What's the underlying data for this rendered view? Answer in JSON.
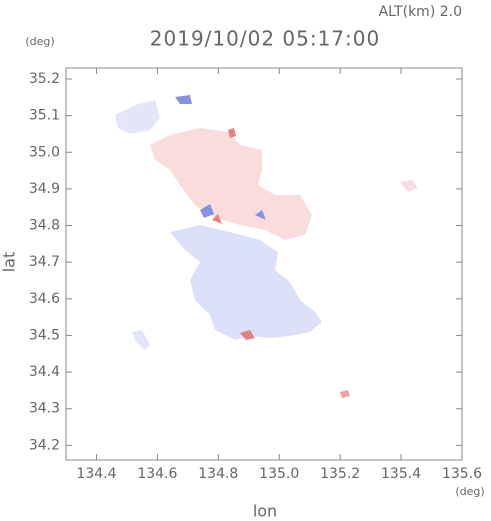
{
  "chart_data": {
    "type": "map",
    "title": "2019/10/02 05:17:00",
    "altitude_label": "ALT(km) 2.0",
    "y_unit": "(deg)",
    "x_unit": "(deg)",
    "x_label": "lon",
    "y_label": "lat",
    "xlim": [
      134.3,
      135.6
    ],
    "ylim": [
      34.16,
      35.23
    ],
    "xticks": [
      134.4,
      134.6,
      134.8,
      {
        "value": 135,
        "label": "135.0"
      },
      135.2,
      135.4,
      135.6
    ],
    "yticks": [
      34.2,
      34.3,
      34.4,
      34.5,
      34.6,
      34.7,
      34.8,
      34.9,
      {
        "value": 35,
        "label": "35.0"
      },
      35.1,
      35.2
    ]
  }
}
